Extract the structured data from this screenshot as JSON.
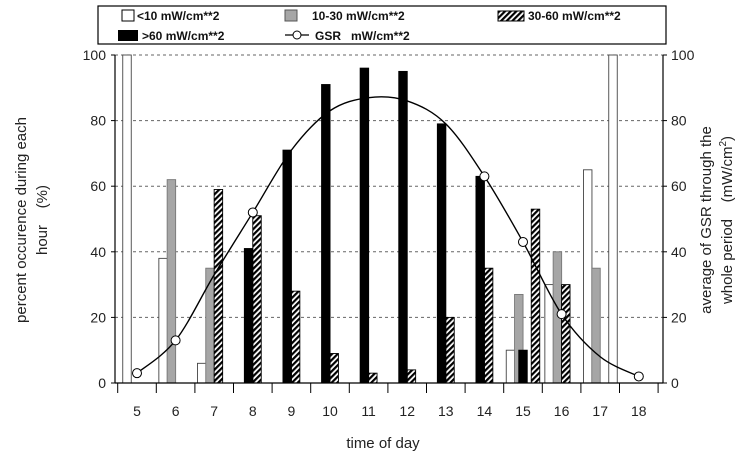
{
  "chart_data": {
    "type": "bar",
    "x": [
      5,
      6,
      7,
      8,
      9,
      10,
      11,
      12,
      13,
      14,
      15,
      16,
      17,
      18
    ],
    "x_tick_labels": [
      "5",
      "6",
      "7",
      "8",
      "9",
      "10",
      "11",
      "12",
      "13",
      "14",
      "15",
      "16",
      "17",
      "18"
    ],
    "xlabel": "time of day",
    "ylabel_left": [
      "percent occurence during each",
      "hour    (%)"
    ],
    "ylabel_right_line1": "average of GSR through the",
    "ylabel_right_line2": "whole period    (mW/cm",
    "ylabel_right_sup": "2",
    "ylabel_right_close": ")",
    "ylim_left": [
      0,
      100
    ],
    "ylim_right": [
      0,
      100
    ],
    "y_ticks": [
      "0",
      "20",
      "40",
      "60",
      "80",
      "100"
    ],
    "grid": "horizontal dashed",
    "legend_position": "top",
    "series": [
      {
        "name": "<10 mW/cm**2",
        "kind": "bar",
        "style": "white",
        "values": [
          100,
          38,
          6,
          null,
          null,
          null,
          null,
          null,
          null,
          null,
          10,
          30,
          65,
          100
        ]
      },
      {
        "name": "10-30 mW/cm**2",
        "kind": "bar",
        "style": "gray",
        "values": [
          null,
          62,
          35,
          null,
          null,
          null,
          null,
          null,
          null,
          null,
          27,
          40,
          35,
          null
        ]
      },
      {
        "name": "30-60 mW/cm**2",
        "kind": "bar",
        "style": "hatched",
        "values": [
          null,
          null,
          59,
          51,
          28,
          9,
          3,
          4,
          20,
          35,
          53,
          30,
          null,
          null
        ]
      },
      {
        "name": ">60 mW/cm**2",
        "kind": "bar",
        "style": "black",
        "values": [
          null,
          null,
          null,
          41,
          71,
          91,
          96,
          95,
          79,
          63,
          10,
          null,
          null,
          null
        ]
      },
      {
        "name": "GSR   mW/cm**2",
        "kind": "line",
        "style": "line-open-circle",
        "values": [
          3,
          13,
          33,
          52,
          71,
          83,
          87,
          86,
          79,
          63,
          43,
          21,
          8,
          2
        ],
        "marker_x": [
          5,
          6,
          8,
          14,
          15,
          16,
          18
        ]
      }
    ]
  }
}
